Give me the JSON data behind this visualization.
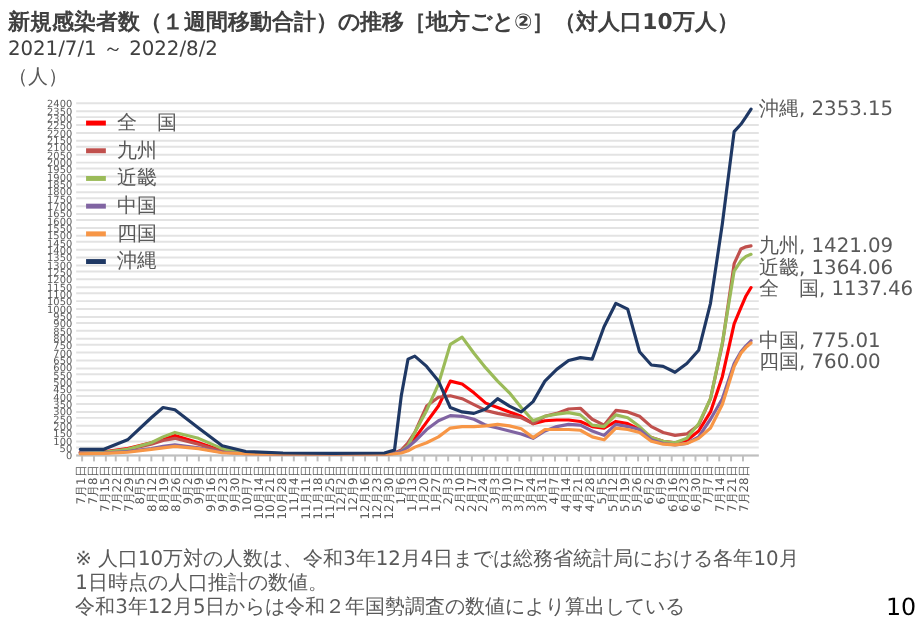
{
  "chart_data": {
    "type": "line",
    "title": "新規感染者数（１週間移動合計）の推移［地方ごと②］（対人口10万人）",
    "subtitle": "2021/7/1 ～ 2022/8/2",
    "ylabel": "（人）",
    "x": [
      "2021-07-01",
      "2021-07-15",
      "2021-07-29",
      "2021-08-12",
      "2021-08-19",
      "2021-08-26",
      "2021-09-09",
      "2021-09-23",
      "2021-10-07",
      "2021-10-29",
      "2021-11-28",
      "2021-12-28",
      "2022-01-03",
      "2022-01-07",
      "2022-01-11",
      "2022-01-15",
      "2022-01-22",
      "2022-01-29",
      "2022-02-05",
      "2022-02-12",
      "2022-02-19",
      "2022-02-26",
      "2022-03-05",
      "2022-03-12",
      "2022-03-19",
      "2022-03-26",
      "2022-04-02",
      "2022-04-09",
      "2022-04-16",
      "2022-04-23",
      "2022-04-30",
      "2022-05-07",
      "2022-05-14",
      "2022-05-21",
      "2022-05-28",
      "2022-06-04",
      "2022-06-11",
      "2022-06-18",
      "2022-06-25",
      "2022-07-02",
      "2022-07-09",
      "2022-07-16",
      "2022-07-23",
      "2022-07-27",
      "2022-07-30",
      "2022-08-02"
    ],
    "series": [
      {
        "name": "全　国",
        "color": "#ff0000",
        "values": [
          15,
          18,
          40,
          80,
          100,
          130,
          80,
          25,
          8,
          5,
          5,
          5,
          8,
          25,
          60,
          110,
          220,
          330,
          500,
          480,
          420,
          350,
          320,
          290,
          260,
          210,
          230,
          235,
          235,
          225,
          190,
          180,
          225,
          210,
          170,
          115,
          90,
          80,
          95,
          160,
          290,
          530,
          890,
          1000,
          1080,
          1137.46
        ],
        "value_labels": [
          null,
          null,
          null,
          null,
          null,
          null,
          null,
          null,
          null,
          null,
          null,
          null,
          null,
          null,
          null,
          null,
          null,
          null,
          null,
          null,
          null,
          null,
          null,
          null,
          null,
          null,
          null,
          null,
          null,
          null,
          null,
          null,
          null,
          null,
          null,
          null,
          null,
          null,
          null,
          null,
          null,
          null,
          null,
          null,
          null,
          "全　国, 1137.46"
        ]
      },
      {
        "name": "九州",
        "color": "#c0504d",
        "values": [
          15,
          15,
          35,
          70,
          95,
          110,
          70,
          20,
          8,
          5,
          5,
          5,
          10,
          30,
          80,
          150,
          330,
          390,
          400,
          380,
          340,
          300,
          280,
          265,
          250,
          210,
          260,
          280,
          310,
          315,
          240,
          200,
          300,
          290,
          260,
          190,
          150,
          130,
          140,
          200,
          380,
          750,
          1300,
          1400,
          1415,
          1421.09
        ],
        "value_labels": [
          null,
          null,
          null,
          null,
          null,
          null,
          null,
          null,
          null,
          null,
          null,
          null,
          null,
          null,
          null,
          null,
          null,
          null,
          null,
          null,
          null,
          null,
          null,
          null,
          null,
          null,
          null,
          null,
          null,
          null,
          null,
          null,
          null,
          null,
          null,
          null,
          null,
          null,
          null,
          null,
          null,
          null,
          null,
          null,
          null,
          "九州, 1421.09"
        ]
      },
      {
        "name": "近畿",
        "color": "#9bbb59",
        "values": [
          10,
          15,
          35,
          80,
          120,
          150,
          110,
          40,
          10,
          5,
          5,
          5,
          8,
          20,
          60,
          150,
          300,
          480,
          750,
          800,
          690,
          590,
          500,
          420,
          320,
          230,
          260,
          275,
          285,
          270,
          200,
          190,
          270,
          250,
          190,
          115,
          90,
          80,
          110,
          210,
          380,
          760,
          1250,
          1320,
          1350,
          1364.06
        ],
        "value_labels": [
          null,
          null,
          null,
          null,
          null,
          null,
          null,
          null,
          null,
          null,
          null,
          null,
          null,
          null,
          null,
          null,
          null,
          null,
          null,
          null,
          null,
          null,
          null,
          null,
          null,
          null,
          null,
          null,
          null,
          null,
          null,
          null,
          null,
          null,
          null,
          null,
          null,
          null,
          null,
          null,
          null,
          null,
          null,
          null,
          null,
          "近畿, 1364.06"
        ]
      },
      {
        "name": "中国",
        "color": "#8064a2",
        "values": [
          10,
          10,
          20,
          40,
          55,
          65,
          45,
          15,
          5,
          4,
          4,
          4,
          8,
          20,
          50,
          90,
          170,
          230,
          265,
          260,
          240,
          200,
          180,
          160,
          140,
          110,
          160,
          190,
          205,
          200,
          160,
          130,
          205,
          190,
          170,
          100,
          75,
          65,
          75,
          120,
          240,
          380,
          620,
          700,
          740,
          775.01
        ],
        "value_labels": [
          null,
          null,
          null,
          null,
          null,
          null,
          null,
          null,
          null,
          null,
          null,
          null,
          null,
          null,
          null,
          null,
          null,
          null,
          null,
          null,
          null,
          null,
          null,
          null,
          null,
          null,
          null,
          null,
          null,
          null,
          null,
          null,
          null,
          null,
          null,
          null,
          null,
          null,
          null,
          null,
          null,
          null,
          null,
          null,
          null,
          "中国, 775.01"
        ]
      },
      {
        "name": "四国",
        "color": "#f79646",
        "values": [
          5,
          8,
          15,
          35,
          45,
          55,
          40,
          12,
          5,
          3,
          3,
          3,
          5,
          10,
          25,
          50,
          80,
          120,
          180,
          190,
          190,
          195,
          205,
          195,
          175,
          115,
          170,
          170,
          170,
          165,
          120,
          100,
          180,
          170,
          150,
          90,
          70,
          65,
          75,
          110,
          180,
          340,
          600,
          690,
          730,
          760
        ],
        "value_labels": [
          null,
          null,
          null,
          null,
          null,
          null,
          null,
          null,
          null,
          null,
          null,
          null,
          null,
          null,
          null,
          null,
          null,
          null,
          null,
          null,
          null,
          null,
          null,
          null,
          null,
          null,
          null,
          null,
          null,
          null,
          null,
          null,
          null,
          null,
          null,
          null,
          null,
          null,
          null,
          null,
          null,
          null,
          null,
          null,
          null,
          "四国, 760.00"
        ]
      },
      {
        "name": "沖縄",
        "color": "#1f3864",
        "values": [
          35,
          35,
          100,
          250,
          320,
          305,
          180,
          60,
          20,
          10,
          8,
          10,
          30,
          400,
          650,
          670,
          600,
          500,
          320,
          290,
          280,
          310,
          380,
          330,
          290,
          360,
          500,
          580,
          640,
          660,
          650,
          870,
          1030,
          990,
          700,
          610,
          600,
          560,
          620,
          710,
          1030,
          1570,
          2200,
          2250,
          2300,
          2353.15
        ],
        "value_labels": [
          null,
          null,
          null,
          null,
          null,
          null,
          null,
          null,
          null,
          null,
          null,
          null,
          null,
          null,
          null,
          null,
          null,
          null,
          null,
          null,
          null,
          null,
          null,
          null,
          null,
          null,
          null,
          null,
          null,
          null,
          null,
          null,
          null,
          null,
          null,
          null,
          null,
          null,
          null,
          null,
          null,
          null,
          null,
          null,
          null,
          "沖縄, 2353.15"
        ]
      }
    ],
    "annotations": [
      "※ 人口10万対の人数は、令和3年12月4日までは総務省統計局における各年10月1日時点の人口推計の数値。",
      "令和3年12月5日からは令和２年国勢調査の数値により算出している",
      "10"
    ],
    "xlim": [
      "2021-06-28",
      "2022-08-06"
    ],
    "xticks": [
      {
        "value": "2021-07-01",
        "label": "7月1日"
      },
      {
        "value": "2021-07-08",
        "label": "7月8日"
      },
      {
        "value": "2021-07-15",
        "label": "7月15日"
      },
      {
        "value": "2021-07-22",
        "label": "7月22日"
      },
      {
        "value": "2021-07-29",
        "label": "7月29日"
      },
      {
        "value": "2021-08-05",
        "label": "8月5日"
      },
      {
        "value": "2021-08-12",
        "label": "8月12日"
      },
      {
        "value": "2021-08-19",
        "label": "8月19日"
      },
      {
        "value": "2021-08-26",
        "label": "8月26日"
      },
      {
        "value": "2021-09-02",
        "label": "9月2日"
      },
      {
        "value": "2021-09-09",
        "label": "9月9日"
      },
      {
        "value": "2021-09-16",
        "label": "9月16日"
      },
      {
        "value": "2021-09-23",
        "label": "9月23日"
      },
      {
        "value": "2021-09-30",
        "label": "9月30日"
      },
      {
        "value": "2021-10-07",
        "label": "10月7日"
      },
      {
        "value": "2021-10-14",
        "label": "10月14日"
      },
      {
        "value": "2021-10-21",
        "label": "10月21日"
      },
      {
        "value": "2021-10-28",
        "label": "10月28日"
      },
      {
        "value": "2021-11-04",
        "label": "11月4日"
      },
      {
        "value": "2021-11-11",
        "label": "11月11日"
      },
      {
        "value": "2021-11-18",
        "label": "11月18日"
      },
      {
        "value": "2021-11-25",
        "label": "11月25日"
      },
      {
        "value": "2021-12-02",
        "label": "12月2日"
      },
      {
        "value": "2021-12-09",
        "label": "12月9日"
      },
      {
        "value": "2021-12-16",
        "label": "12月16日"
      },
      {
        "value": "2021-12-23",
        "label": "12月23日"
      },
      {
        "value": "2021-12-30",
        "label": "12月30日"
      },
      {
        "value": "2022-01-06",
        "label": "1月6日"
      },
      {
        "value": "2022-01-13",
        "label": "1月13日"
      },
      {
        "value": "2022-01-20",
        "label": "1月20日"
      },
      {
        "value": "2022-01-27",
        "label": "1月27日"
      },
      {
        "value": "2022-02-03",
        "label": "2月3日"
      },
      {
        "value": "2022-02-10",
        "label": "2月10日"
      },
      {
        "value": "2022-02-17",
        "label": "2月17日"
      },
      {
        "value": "2022-02-24",
        "label": "2月24日"
      },
      {
        "value": "2022-03-03",
        "label": "3月3日"
      },
      {
        "value": "2022-03-10",
        "label": "3月10日"
      },
      {
        "value": "2022-03-17",
        "label": "3月17日"
      },
      {
        "value": "2022-03-24",
        "label": "3月24日"
      },
      {
        "value": "2022-03-31",
        "label": "3月31日"
      },
      {
        "value": "2022-04-07",
        "label": "4月7日"
      },
      {
        "value": "2022-04-14",
        "label": "4月14日"
      },
      {
        "value": "2022-04-21",
        "label": "4月21日"
      },
      {
        "value": "2022-04-28",
        "label": "4月28日"
      },
      {
        "value": "2022-05-05",
        "label": "5月5日"
      },
      {
        "value": "2022-05-12",
        "label": "5月12日"
      },
      {
        "value": "2022-05-19",
        "label": "5月19日"
      },
      {
        "value": "2022-05-26",
        "label": "5月26日"
      },
      {
        "value": "2022-06-02",
        "label": "6月2日"
      },
      {
        "value": "2022-06-09",
        "label": "6月9日"
      },
      {
        "value": "2022-06-16",
        "label": "6月16日"
      },
      {
        "value": "2022-06-23",
        "label": "6月23日"
      },
      {
        "value": "2022-06-30",
        "label": "6月30日"
      },
      {
        "value": "2022-07-07",
        "label": "7月7日"
      },
      {
        "value": "2022-07-14",
        "label": "7月14日"
      },
      {
        "value": "2022-07-21",
        "label": "7月21日"
      },
      {
        "value": "2022-07-28",
        "label": "7月28日"
      }
    ],
    "ylim": [
      0,
      2400
    ],
    "yticks": [
      0,
      50,
      100,
      150,
      200,
      250,
      300,
      350,
      400,
      450,
      500,
      550,
      600,
      650,
      700,
      750,
      800,
      850,
      900,
      950,
      1000,
      1050,
      1100,
      1150,
      1200,
      1250,
      1300,
      1350,
      1400,
      1450,
      1500,
      1550,
      1600,
      1650,
      1700,
      1750,
      1800,
      1850,
      1900,
      1950,
      2000,
      2050,
      2100,
      2150,
      2200,
      2250,
      2300,
      2350,
      2400
    ],
    "grid": "y",
    "legend": "top left"
  }
}
